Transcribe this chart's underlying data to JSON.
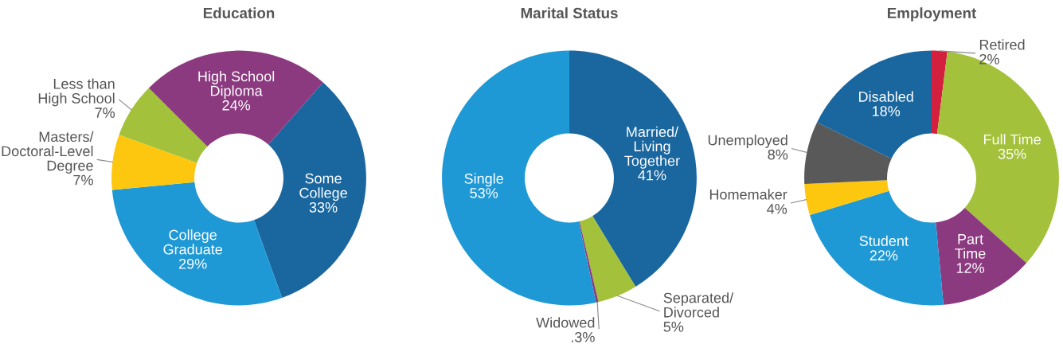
{
  "chart_data": [
    {
      "type": "donut",
      "title": "Education",
      "categories": [
        "Some\nCollege",
        "College\nGraduate",
        "Masters/\nDoctoral-Level\nDegree",
        "Less than\nHigh School",
        "High School\nDiploma"
      ],
      "values": [
        33,
        29,
        7,
        7,
        24
      ],
      "value_labels": [
        "33%",
        "29%",
        "7%",
        "7%",
        "24%"
      ],
      "colors": [
        "#1a67a0",
        "#1f99d6",
        "#fec70f",
        "#a3c13a",
        "#8c3a80"
      ]
    },
    {
      "type": "donut",
      "title": "Marital Status",
      "categories": [
        "Married/\nLiving\nTogether",
        "Separated/\nDivorced",
        "Widowed",
        "Single"
      ],
      "values": [
        41,
        5,
        0.3,
        53
      ],
      "value_labels": [
        "41%",
        "5%",
        ".3%",
        "53%"
      ],
      "colors": [
        "#1a67a0",
        "#a3c13a",
        "#8c3a80",
        "#1f99d6"
      ]
    },
    {
      "type": "donut",
      "title": "Employment",
      "categories": [
        "Retired",
        "Full Time",
        "Part\nTime",
        "Student",
        "Homemaker",
        "Unemployed",
        "Disabled"
      ],
      "values": [
        2,
        35,
        12,
        22,
        4,
        8,
        18
      ],
      "value_labels": [
        "2%",
        "35%",
        "12%",
        "22%",
        "4%",
        "8%",
        "18%"
      ],
      "colors": [
        "#d3203f",
        "#a3c13a",
        "#8c3a80",
        "#1f99d6",
        "#fec70f",
        "#595959",
        "#1a67a0"
      ]
    }
  ]
}
